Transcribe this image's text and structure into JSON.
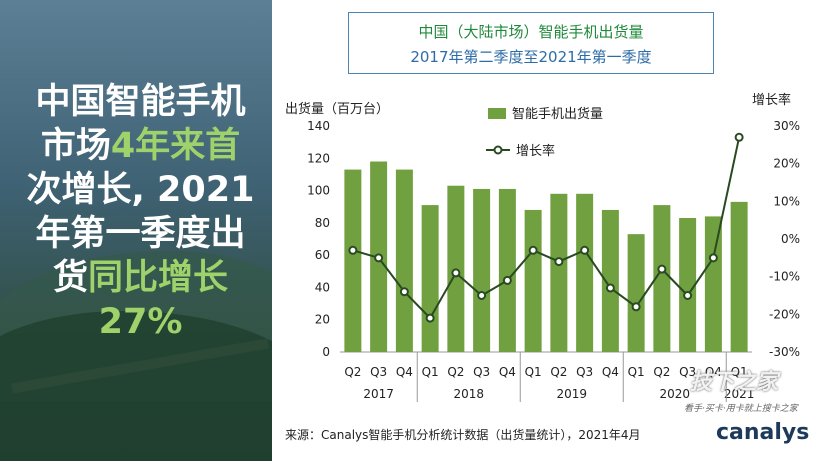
{
  "headline": {
    "line1": "中国智能手机",
    "line2a": "市场",
    "line2b": "4年来首",
    "line3": "次增长, 2021",
    "line4": "年第一季度出",
    "line5a": "货",
    "line5b": "同比增长",
    "line6": "27%"
  },
  "chart_title": {
    "line1": "中国（大陆市场）智能手机出货量",
    "line2": "2017年第二季度至2021年第一季度"
  },
  "source": "来源：Canalys智能手机分析统计数据（出货量统计），2021年4月",
  "logo": "canalys",
  "watermark": "技下之家",
  "watermark_sub": "看手·买卡·用卡就上搜卡之家",
  "colors": {
    "bar": "#70a040",
    "line": "#2a4a22",
    "headline_accent": "#9fd26a",
    "title_green": "#1f8a3a",
    "title_blue": "#2d6ca8"
  },
  "chart_data": {
    "type": "bar",
    "title": "中国（大陆市场）智能手机出货量",
    "subtitle": "2017年第二季度至2021年第一季度",
    "ylabel_left": "出货量（百万台）",
    "ylabel_right": "增长率",
    "categories": [
      "Q2",
      "Q3",
      "Q4",
      "Q1",
      "Q2",
      "Q3",
      "Q4",
      "Q1",
      "Q2",
      "Q3",
      "Q4",
      "Q1",
      "Q2",
      "Q3",
      "Q4",
      "Q1"
    ],
    "years": [
      {
        "label": "2017",
        "start": 0,
        "end": 2
      },
      {
        "label": "2018",
        "start": 3,
        "end": 6
      },
      {
        "label": "2019",
        "start": 7,
        "end": 10
      },
      {
        "label": "2020",
        "start": 11,
        "end": 14
      },
      {
        "label": "2021",
        "start": 15,
        "end": 15
      }
    ],
    "series": [
      {
        "name": "智能手机出货量",
        "type": "bar",
        "axis": "left",
        "values": [
          113,
          118,
          113,
          91,
          103,
          101,
          101,
          88,
          98,
          98,
          88,
          73,
          91,
          83,
          84,
          93
        ]
      },
      {
        "name": "增长率",
        "type": "line",
        "axis": "right",
        "values": [
          -3,
          -5,
          -14,
          -21,
          -9,
          -15,
          -11,
          -3,
          -6,
          -3,
          -13,
          -18,
          -8,
          -15,
          -5,
          27
        ]
      }
    ],
    "ylim_left": [
      0,
      140
    ],
    "yticks_left": [
      0,
      20,
      40,
      60,
      80,
      100,
      120,
      140
    ],
    "ylim_right": [
      -30,
      30
    ],
    "yticks_right": [
      "30%",
      "20%",
      "10%",
      "0%",
      "-10%",
      "-20%",
      "-30%"
    ],
    "legend": "top-center",
    "grid": false
  }
}
